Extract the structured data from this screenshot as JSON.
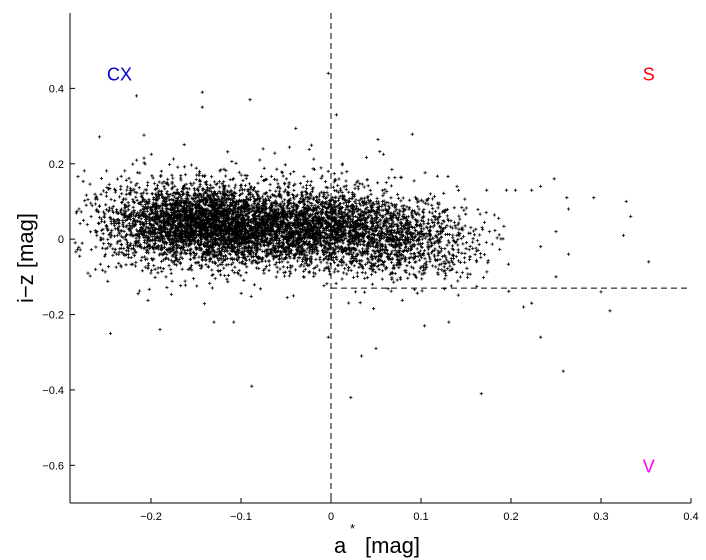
{
  "chart_data": {
    "type": "scatter",
    "xlabel": "a",
    "xlabel_superscript": "*",
    "xlabel_unit": "[mag]",
    "ylabel": "i−z [mag]",
    "xlim": [
      -0.29,
      0.4
    ],
    "ylim": [
      -0.7,
      0.6
    ],
    "x_ticks": [
      -0.2,
      -0.1,
      0,
      0.1,
      0.2,
      0.3,
      0.4
    ],
    "x_tick_labels": [
      "−0.2",
      "−0.1",
      "0",
      "0.1",
      "0.2",
      "0.3",
      "0.4"
    ],
    "y_ticks": [
      0.4,
      0.2,
      0,
      -0.2,
      -0.4,
      -0.6
    ],
    "y_tick_labels": [
      "0.4",
      "0.2",
      "0",
      "−0.2",
      "−0.4",
      "−0.6"
    ],
    "grid": false,
    "marker": "+",
    "marker_color": "#000000",
    "dashed_lines": [
      {
        "orientation": "vertical",
        "x": 0,
        "y_from": -0.7,
        "y_to": 0.6
      },
      {
        "orientation": "horizontal",
        "y": -0.13,
        "x_from": 0,
        "x_to": 0.4
      }
    ],
    "region_labels": [
      {
        "text": "CX",
        "x": -0.235,
        "y": 0.44,
        "color": "#0000cc"
      },
      {
        "text": "S",
        "x": 0.353,
        "y": 0.44,
        "color": "#ff0000"
      },
      {
        "text": "V",
        "x": 0.353,
        "y": -0.6,
        "color": "#ff00ff"
      }
    ],
    "clusters": [
      {
        "center": [
          -0.14,
          0.04
        ],
        "spread": [
          0.045,
          0.05
        ],
        "count": 2600
      },
      {
        "center": [
          -0.06,
          0.03
        ],
        "spread": [
          0.045,
          0.05
        ],
        "count": 1500
      },
      {
        "center": [
          0.01,
          0.03
        ],
        "spread": [
          0.045,
          0.05
        ],
        "count": 1400
      },
      {
        "center": [
          0.07,
          -0.01
        ],
        "spread": [
          0.04,
          0.05
        ],
        "count": 600
      },
      {
        "center": [
          -0.2,
          0.05
        ],
        "spread": [
          0.035,
          0.05
        ],
        "count": 500
      },
      {
        "center": [
          0.12,
          0.0
        ],
        "spread": [
          0.035,
          0.05
        ],
        "count": 200
      },
      {
        "center": [
          -0.1,
          0.05
        ],
        "spread": [
          0.12,
          0.1
        ],
        "count": 400
      }
    ],
    "outliers": [
      {
        "x": -0.216,
        "y": 0.38
      },
      {
        "x": -0.143,
        "y": 0.39
      },
      {
        "x": -0.143,
        "y": 0.35
      },
      {
        "x": -0.09,
        "y": 0.37
      },
      {
        "x": -0.003,
        "y": 0.44
      },
      {
        "x": 0.006,
        "y": 0.33
      },
      {
        "x": 0.14,
        "y": 0.14
      },
      {
        "x": 0.173,
        "y": 0.13
      },
      {
        "x": 0.195,
        "y": 0.13
      },
      {
        "x": 0.205,
        "y": 0.13
      },
      {
        "x": 0.223,
        "y": 0.13
      },
      {
        "x": 0.233,
        "y": 0.14
      },
      {
        "x": 0.248,
        "y": 0.16
      },
      {
        "x": 0.262,
        "y": 0.11
      },
      {
        "x": 0.264,
        "y": 0.08
      },
      {
        "x": 0.292,
        "y": 0.11
      },
      {
        "x": 0.325,
        "y": 0.01
      },
      {
        "x": 0.328,
        "y": 0.1
      },
      {
        "x": 0.333,
        "y": 0.06
      },
      {
        "x": 0.353,
        "y": -0.06
      },
      {
        "x": 0.233,
        "y": -0.02
      },
      {
        "x": 0.25,
        "y": 0.02
      },
      {
        "x": 0.264,
        "y": -0.04
      },
      {
        "x": 0.214,
        "y": -0.18
      },
      {
        "x": 0.223,
        "y": -0.17
      },
      {
        "x": 0.233,
        "y": -0.26
      },
      {
        "x": 0.25,
        "y": -0.1
      },
      {
        "x": 0.258,
        "y": -0.35
      },
      {
        "x": 0.3,
        "y": -0.14
      },
      {
        "x": 0.31,
        "y": -0.19
      },
      {
        "x": 0.167,
        "y": -0.41
      },
      {
        "x": 0.131,
        "y": -0.22
      },
      {
        "x": 0.104,
        "y": -0.23
      },
      {
        "x": 0.05,
        "y": -0.29
      },
      {
        "x": 0.034,
        "y": -0.31
      },
      {
        "x": 0.022,
        "y": -0.42
      },
      {
        "x": -0.003,
        "y": -0.26
      },
      {
        "x": -0.245,
        "y": -0.25
      },
      {
        "x": -0.19,
        "y": -0.24
      },
      {
        "x": -0.108,
        "y": -0.22
      },
      {
        "x": -0.13,
        "y": -0.22
      },
      {
        "x": -0.088,
        "y": -0.39
      },
      {
        "x": -0.28,
        "y": 0.08
      },
      {
        "x": -0.272,
        "y": 0.09
      },
      {
        "x": -0.275,
        "y": 0.05
      },
      {
        "x": -0.27,
        "y": -0.09
      },
      {
        "x": -0.26,
        "y": 0.02
      }
    ]
  }
}
